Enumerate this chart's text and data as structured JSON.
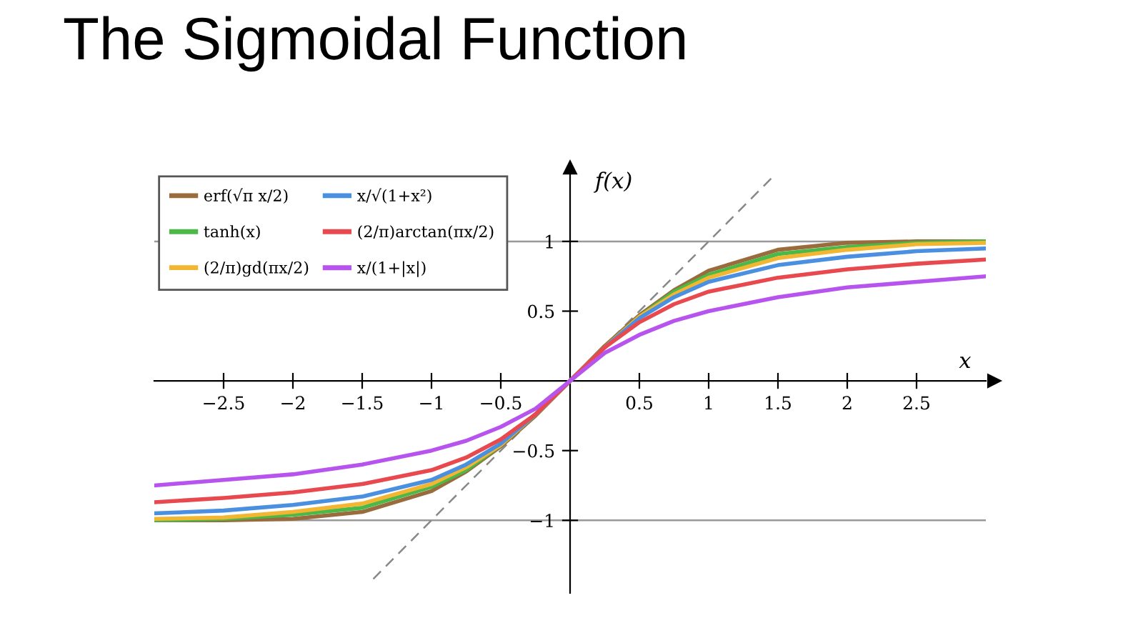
{
  "chart_data": {
    "type": "line",
    "title": "The Sigmoidal Function",
    "xlabel": "x",
    "ylabel": "f(x)",
    "xlim": [
      -3,
      3
    ],
    "ylim": [
      -1.52,
      1.5
    ],
    "xticks": [
      -2.5,
      -2,
      -1.5,
      -1,
      -0.5,
      0.5,
      1,
      1.5,
      2,
      2.5
    ],
    "yticks": [
      -1,
      -0.5,
      0.5,
      1
    ],
    "grid": false,
    "legend": "top left",
    "marker": "none",
    "line_style": "solid",
    "x": [
      -3,
      -2.5,
      -2,
      -1.5,
      -1,
      -0.75,
      -0.5,
      -0.25,
      0,
      0.25,
      0.5,
      0.75,
      1,
      1.5,
      2,
      2.5,
      3
    ],
    "ref_lines": [
      {
        "axis": "y",
        "value": 1,
        "color": "#999999"
      },
      {
        "axis": "y",
        "value": -1,
        "color": "#999999"
      }
    ],
    "series": [
      {
        "name": "erf(√π x/2)",
        "color": "#9a6b3c",
        "values": [
          -1.0,
          -1.0,
          -0.99,
          -0.94,
          -0.79,
          -0.65,
          -0.47,
          -0.25,
          0,
          0.25,
          0.47,
          0.65,
          0.79,
          0.94,
          0.99,
          1.0,
          1.0
        ]
      },
      {
        "name": "tanh(x)",
        "color": "#4cb848",
        "values": [
          -1.0,
          -0.99,
          -0.96,
          -0.91,
          -0.76,
          -0.64,
          -0.46,
          -0.24,
          0,
          0.24,
          0.46,
          0.64,
          0.76,
          0.91,
          0.96,
          0.99,
          1.0
        ]
      },
      {
        "name": "(2/π)gd(πx/2)",
        "color": "#f2b632",
        "values": [
          -0.99,
          -0.98,
          -0.94,
          -0.88,
          -0.74,
          -0.62,
          -0.46,
          -0.24,
          0,
          0.24,
          0.46,
          0.62,
          0.74,
          0.88,
          0.94,
          0.98,
          0.99
        ]
      },
      {
        "name": "x/√(1+x²)",
        "color": "#4a8fe0",
        "values": [
          -0.95,
          -0.93,
          -0.89,
          -0.83,
          -0.71,
          -0.6,
          -0.45,
          -0.24,
          0,
          0.24,
          0.45,
          0.6,
          0.71,
          0.83,
          0.89,
          0.93,
          0.95
        ]
      },
      {
        "name": "(2/π)arctan(πx/2)",
        "color": "#e8494f",
        "values": [
          -0.87,
          -0.84,
          -0.8,
          -0.74,
          -0.64,
          -0.55,
          -0.42,
          -0.24,
          0,
          0.24,
          0.42,
          0.55,
          0.64,
          0.74,
          0.8,
          0.84,
          0.87
        ]
      },
      {
        "name": "x/(1+|x|)",
        "color": "#b854ee",
        "values": [
          -0.75,
          -0.71,
          -0.67,
          -0.6,
          -0.5,
          -0.43,
          -0.33,
          -0.2,
          0,
          0.2,
          0.33,
          0.43,
          0.5,
          0.6,
          0.67,
          0.71,
          0.75
        ]
      },
      {
        "color": "#888888",
        "line_style": "dashed",
        "x": [
          -1.42,
          1.47
        ],
        "values": [
          -1.42,
          1.47
        ]
      }
    ]
  }
}
